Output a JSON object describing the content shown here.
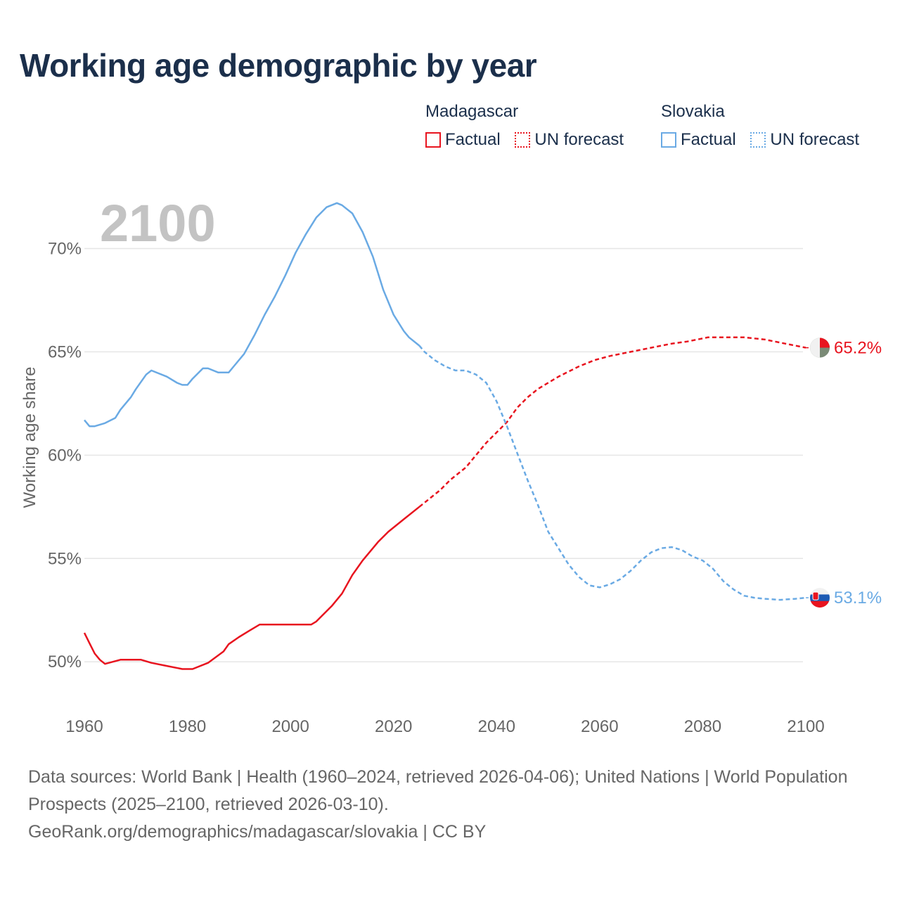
{
  "title": "Working age demographic by year",
  "legend": {
    "groups": [
      {
        "name": "Madagascar",
        "color": "#e8141f",
        "items": [
          "Factual",
          "UN forecast"
        ]
      },
      {
        "name": "Slovakia",
        "color": "#6aaae4",
        "items": [
          "Factual",
          "UN forecast"
        ]
      }
    ]
  },
  "year_watermark": "2100",
  "footer": {
    "sources": "Data sources: World Bank | Health (1960–2024, retrieved 2026-04-06); United Nations | World Population Prospects (2025–2100, retrieved 2026-03-10).",
    "credit": "GeoRank.org/demographics/madagascar/slovakia | CC BY"
  },
  "chart_data": {
    "type": "line",
    "title": "Working age demographic by year",
    "xlabel": "",
    "ylabel": "Working age share",
    "xlim": [
      1960,
      2103
    ],
    "ylim": [
      48,
      72.5
    ],
    "x_ticks": [
      1960,
      1980,
      2000,
      2020,
      2040,
      2060,
      2080,
      2100
    ],
    "y_ticks": [
      50,
      55,
      60,
      65,
      70
    ],
    "y_tick_labels": [
      "50%",
      "55%",
      "60%",
      "65%",
      "70%"
    ],
    "grid": true,
    "forecast_start": 2025,
    "series": [
      {
        "name": "Madagascar",
        "color": "#e8141f",
        "end_label": "65.2%",
        "points": [
          [
            1960,
            51.4
          ],
          [
            1961,
            50.9
          ],
          [
            1962,
            50.4
          ],
          [
            1963,
            50.1
          ],
          [
            1964,
            49.9
          ],
          [
            1967,
            50.1
          ],
          [
            1971,
            50.1
          ],
          [
            1973,
            49.95
          ],
          [
            1976,
            49.8
          ],
          [
            1979,
            49.65
          ],
          [
            1981,
            49.65
          ],
          [
            1984,
            49.95
          ],
          [
            1987,
            50.5
          ],
          [
            1988,
            50.85
          ],
          [
            1990,
            51.2
          ],
          [
            1992,
            51.5
          ],
          [
            1994,
            51.8
          ],
          [
            2000,
            51.8
          ],
          [
            2004,
            51.8
          ],
          [
            2005,
            51.95
          ],
          [
            2008,
            52.7
          ],
          [
            2010,
            53.3
          ],
          [
            2012,
            54.2
          ],
          [
            2014,
            54.9
          ],
          [
            2017,
            55.8
          ],
          [
            2019,
            56.3
          ],
          [
            2022,
            56.9
          ],
          [
            2025,
            57.5
          ],
          [
            2029,
            58.3
          ],
          [
            2031,
            58.8
          ],
          [
            2034,
            59.4
          ],
          [
            2036,
            60.0
          ],
          [
            2038,
            60.6
          ],
          [
            2040,
            61.1
          ],
          [
            2042,
            61.6
          ],
          [
            2044,
            62.3
          ],
          [
            2046,
            62.8
          ],
          [
            2048,
            63.2
          ],
          [
            2052,
            63.8
          ],
          [
            2056,
            64.3
          ],
          [
            2059,
            64.6
          ],
          [
            2062,
            64.8
          ],
          [
            2066,
            65.0
          ],
          [
            2070,
            65.2
          ],
          [
            2074,
            65.4
          ],
          [
            2077,
            65.5
          ],
          [
            2081,
            65.7
          ],
          [
            2088,
            65.7
          ],
          [
            2092,
            65.6
          ],
          [
            2096,
            65.4
          ],
          [
            2100,
            65.2
          ]
        ]
      },
      {
        "name": "Slovakia",
        "color": "#6aaae4",
        "end_label": "53.1%",
        "points": [
          [
            1960,
            61.7
          ],
          [
            1961,
            61.4
          ],
          [
            1962,
            61.4
          ],
          [
            1964,
            61.55
          ],
          [
            1966,
            61.8
          ],
          [
            1967,
            62.2
          ],
          [
            1969,
            62.8
          ],
          [
            1970,
            63.2
          ],
          [
            1972,
            63.9
          ],
          [
            1973,
            64.1
          ],
          [
            1976,
            63.8
          ],
          [
            1978,
            63.5
          ],
          [
            1979,
            63.4
          ],
          [
            1980,
            63.4
          ],
          [
            1981,
            63.7
          ],
          [
            1983,
            64.2
          ],
          [
            1984,
            64.2
          ],
          [
            1986,
            64.0
          ],
          [
            1988,
            64.0
          ],
          [
            1989,
            64.3
          ],
          [
            1991,
            64.9
          ],
          [
            1993,
            65.8
          ],
          [
            1995,
            66.8
          ],
          [
            1997,
            67.7
          ],
          [
            1999,
            68.7
          ],
          [
            2001,
            69.8
          ],
          [
            2003,
            70.7
          ],
          [
            2005,
            71.5
          ],
          [
            2007,
            72.0
          ],
          [
            2009,
            72.2
          ],
          [
            2010,
            72.1
          ],
          [
            2012,
            71.7
          ],
          [
            2014,
            70.8
          ],
          [
            2016,
            69.6
          ],
          [
            2018,
            68.0
          ],
          [
            2020,
            66.8
          ],
          [
            2022,
            66.0
          ],
          [
            2023,
            65.7
          ],
          [
            2025,
            65.3
          ],
          [
            2026,
            65.0
          ],
          [
            2028,
            64.6
          ],
          [
            2030,
            64.3
          ],
          [
            2032,
            64.1
          ],
          [
            2034,
            64.1
          ],
          [
            2036,
            63.9
          ],
          [
            2038,
            63.5
          ],
          [
            2040,
            62.6
          ],
          [
            2042,
            61.4
          ],
          [
            2044,
            60.1
          ],
          [
            2046,
            58.8
          ],
          [
            2048,
            57.6
          ],
          [
            2050,
            56.3
          ],
          [
            2052,
            55.5
          ],
          [
            2054,
            54.7
          ],
          [
            2056,
            54.1
          ],
          [
            2058,
            53.7
          ],
          [
            2060,
            53.6
          ],
          [
            2062,
            53.75
          ],
          [
            2064,
            54.0
          ],
          [
            2066,
            54.4
          ],
          [
            2068,
            54.9
          ],
          [
            2070,
            55.3
          ],
          [
            2072,
            55.5
          ],
          [
            2074,
            55.55
          ],
          [
            2076,
            55.4
          ],
          [
            2078,
            55.1
          ],
          [
            2080,
            54.9
          ],
          [
            2082,
            54.5
          ],
          [
            2084,
            53.9
          ],
          [
            2086,
            53.5
          ],
          [
            2088,
            53.2
          ],
          [
            2090,
            53.1
          ],
          [
            2092,
            53.05
          ],
          [
            2095,
            53.0
          ],
          [
            2098,
            53.05
          ],
          [
            2100,
            53.1
          ]
        ]
      }
    ]
  }
}
